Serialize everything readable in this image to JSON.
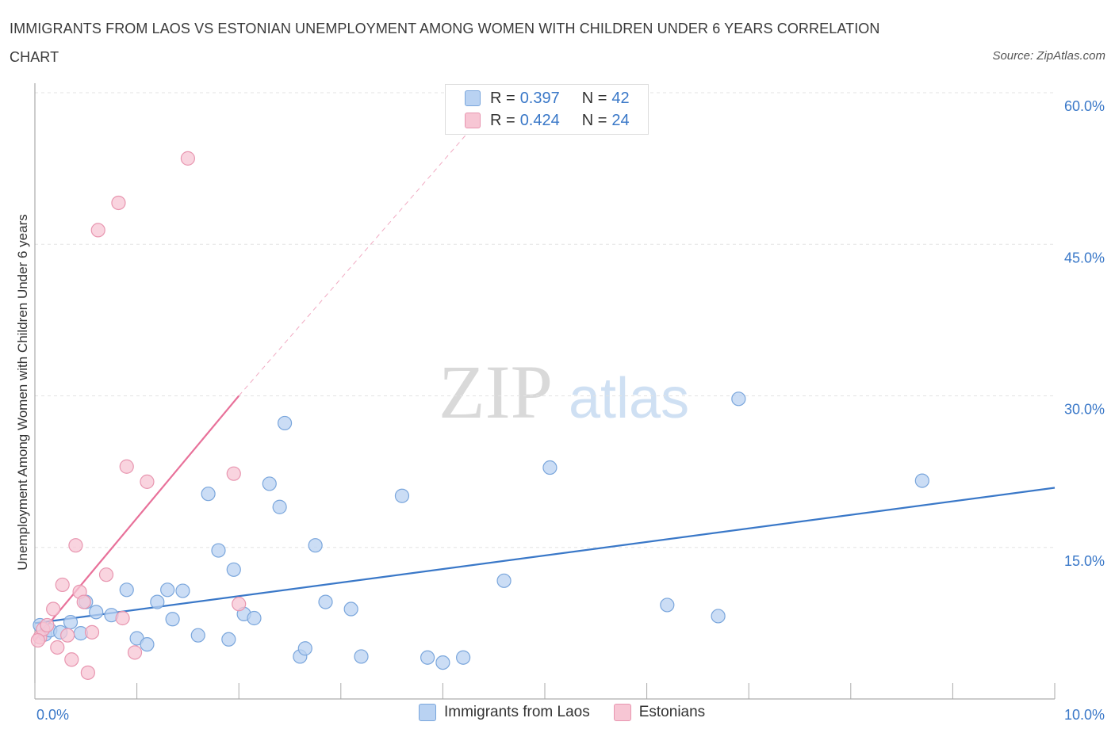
{
  "title": "IMMIGRANTS FROM LAOS VS ESTONIAN UNEMPLOYMENT AMONG WOMEN WITH CHILDREN UNDER 6 YEARS CORRELATION CHART",
  "source": "Source: ZipAtlas.com",
  "watermark": {
    "zip": "ZIP",
    "atlas": "atlas"
  },
  "legend": {
    "laos": {
      "r_label": "R =",
      "r_value": "0.397",
      "n_label": "N =",
      "n_value": "42"
    },
    "estonians": {
      "r_label": "R =",
      "r_value": "0.424",
      "n_label": "N =",
      "n_value": "24"
    }
  },
  "colors": {
    "laos_fill": "#b9d2f2",
    "laos_stroke": "#7aa6dc",
    "laos_line": "#3a78c8",
    "est_fill": "#f7c6d4",
    "est_stroke": "#e896b0",
    "est_line": "#e8719a",
    "grid": "#e3e3e3",
    "tick_label": "#3a78c8"
  },
  "chart_data": {
    "type": "scatter",
    "title": "IMMIGRANTS FROM LAOS VS ESTONIAN UNEMPLOYMENT AMONG WOMEN WITH CHILDREN UNDER 6 YEARS CORRELATION CHART",
    "xlabel": "",
    "ylabel": "Unemployment Among Women with Children Under 6 years",
    "xlim": [
      0,
      10
    ],
    "ylim": [
      0,
      60
    ],
    "x_tick_labels": [
      "0.0%",
      "10.0%"
    ],
    "y_tick_labels": [
      "15.0%",
      "30.0%",
      "45.0%",
      "60.0%"
    ],
    "y_ticks": [
      15,
      30,
      45,
      60
    ],
    "grid": true,
    "series": [
      {
        "name": "Immigrants from Laos",
        "points": [
          [
            0.05,
            7.3
          ],
          [
            0.1,
            6.4
          ],
          [
            0.15,
            6.8
          ],
          [
            0.25,
            6.6
          ],
          [
            0.45,
            6.5
          ],
          [
            0.35,
            7.6
          ],
          [
            0.6,
            8.6
          ],
          [
            0.75,
            8.3
          ],
          [
            0.5,
            9.6
          ],
          [
            0.9,
            10.8
          ],
          [
            1.0,
            6.0
          ],
          [
            1.1,
            5.4
          ],
          [
            1.2,
            9.6
          ],
          [
            1.3,
            10.8
          ],
          [
            1.35,
            7.9
          ],
          [
            1.45,
            10.7
          ],
          [
            1.6,
            6.3
          ],
          [
            1.7,
            20.3
          ],
          [
            1.8,
            14.7
          ],
          [
            1.9,
            5.9
          ],
          [
            1.95,
            12.8
          ],
          [
            2.05,
            8.4
          ],
          [
            2.15,
            8.0
          ],
          [
            2.3,
            21.3
          ],
          [
            2.4,
            19.0
          ],
          [
            2.45,
            27.3
          ],
          [
            2.6,
            4.2
          ],
          [
            2.65,
            5.0
          ],
          [
            2.75,
            15.2
          ],
          [
            2.85,
            9.6
          ],
          [
            3.1,
            8.9
          ],
          [
            3.2,
            4.2
          ],
          [
            3.6,
            20.1
          ],
          [
            3.85,
            4.1
          ],
          [
            4.0,
            3.6
          ],
          [
            4.2,
            4.1
          ],
          [
            4.6,
            11.7
          ],
          [
            5.05,
            22.9
          ],
          [
            6.2,
            9.3
          ],
          [
            6.7,
            8.2
          ],
          [
            6.9,
            29.7
          ],
          [
            8.7,
            21.6
          ]
        ]
      },
      {
        "name": "Estonians",
        "points": [
          [
            0.05,
            6.1
          ],
          [
            0.08,
            6.9
          ],
          [
            0.12,
            7.3
          ],
          [
            0.18,
            8.9
          ],
          [
            0.22,
            5.1
          ],
          [
            0.27,
            11.3
          ],
          [
            0.32,
            6.3
          ],
          [
            0.36,
            3.9
          ],
          [
            0.4,
            15.2
          ],
          [
            0.44,
            10.6
          ],
          [
            0.48,
            9.6
          ],
          [
            0.52,
            2.6
          ],
          [
            0.56,
            6.6
          ],
          [
            0.62,
            46.4
          ],
          [
            0.7,
            12.3
          ],
          [
            0.82,
            49.1
          ],
          [
            0.86,
            8.0
          ],
          [
            0.9,
            23.0
          ],
          [
            0.98,
            4.6
          ],
          [
            1.1,
            21.5
          ],
          [
            1.5,
            53.5
          ],
          [
            1.95,
            22.3
          ],
          [
            2.0,
            9.4
          ],
          [
            0.03,
            5.8
          ]
        ]
      }
    ],
    "trendlines": [
      {
        "series": "Immigrants from Laos",
        "x": [
          0.0,
          10.0
        ],
        "y": [
          7.5,
          20.9
        ],
        "style": "solid"
      },
      {
        "series": "Estonians",
        "x": [
          0.0,
          2.0
        ],
        "y": [
          5.8,
          30.0
        ],
        "style": "solid"
      },
      {
        "series": "Estonians",
        "x": [
          2.0,
          4.5
        ],
        "y": [
          30.0,
          59.0
        ],
        "style": "dashed"
      }
    ]
  },
  "bottom_legend": [
    "Immigrants from Laos",
    "Estonians"
  ]
}
